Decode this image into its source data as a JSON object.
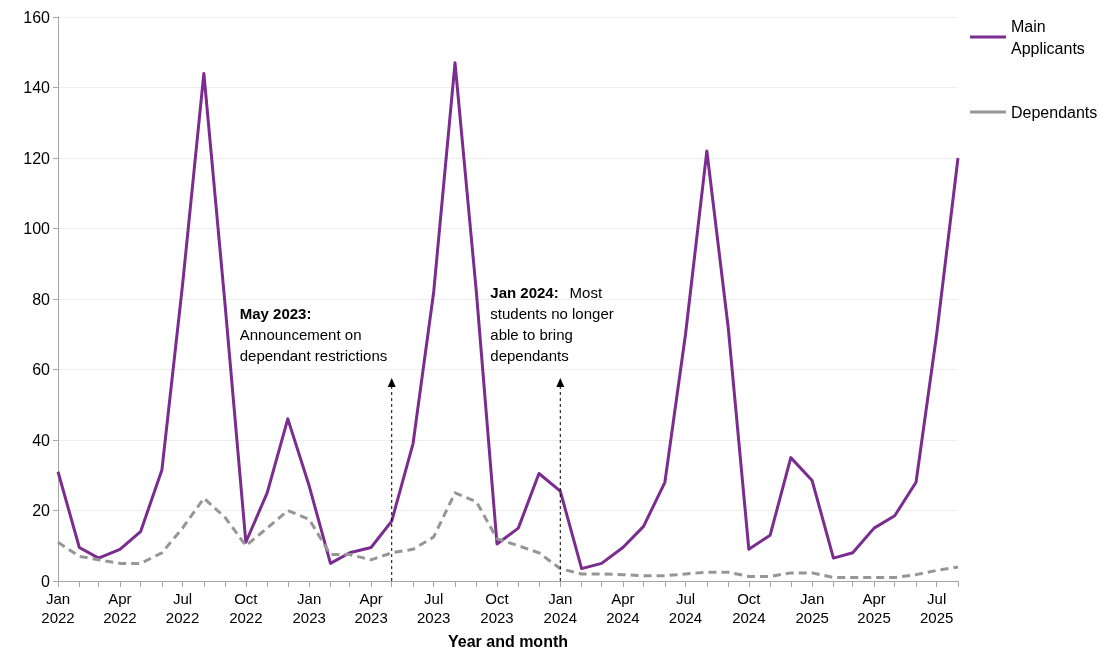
{
  "chart_data": {
    "type": "line",
    "xlabel": "Year and month",
    "x": [
      "2022-01",
      "2022-02",
      "2022-03",
      "2022-04",
      "2022-05",
      "2022-06",
      "2022-07",
      "2022-08",
      "2022-09",
      "2022-10",
      "2022-11",
      "2022-12",
      "2023-01",
      "2023-02",
      "2023-03",
      "2023-04",
      "2023-05",
      "2023-06",
      "2023-07",
      "2023-08",
      "2023-09",
      "2023-10",
      "2023-11",
      "2023-12",
      "2024-01",
      "2024-02",
      "2024-03",
      "2024-04",
      "2024-05",
      "2024-06",
      "2024-07",
      "2024-08",
      "2024-09",
      "2024-10",
      "2024-11",
      "2024-12",
      "2025-01",
      "2025-02",
      "2025-03",
      "2025-04",
      "2025-05",
      "2025-06",
      "2025-07",
      "2025-08"
    ],
    "series": [
      {
        "name": "Main Applicants",
        "color": "#7b2c8f",
        "line_style": "solid",
        "values": [
          31,
          9.5,
          6.5,
          9,
          14,
          31.5,
          84,
          144,
          78,
          11,
          25,
          46,
          27,
          5,
          8,
          9.5,
          17,
          39,
          82,
          147,
          82,
          10.5,
          15,
          30.5,
          25.5,
          3.5,
          5,
          9.5,
          15.5,
          28,
          70,
          122,
          72,
          9,
          13,
          35,
          28.5,
          6.5,
          8,
          15,
          18.5,
          28,
          70,
          120
        ]
      },
      {
        "name": "Dependants",
        "color": "#969696",
        "line_style": "dashed",
        "values": [
          11,
          7,
          6,
          5,
          5,
          8,
          15,
          23.5,
          18,
          10,
          15,
          20,
          17.5,
          7.5,
          7.5,
          6,
          8,
          9,
          12.5,
          25,
          22.5,
          12,
          10,
          8,
          3.5,
          2,
          2,
          1.8,
          1.5,
          1.5,
          2,
          2.5,
          2.5,
          1.3,
          1.3,
          2.3,
          2.3,
          1,
          1,
          1,
          1,
          1.8,
          3,
          4
        ]
      }
    ],
    "xlim": [
      "2022-01",
      "2025-08"
    ],
    "xticks": [
      {
        "value": "2022-01",
        "label": "Jan 2022"
      },
      {
        "value": "2022-02",
        "label": null
      },
      {
        "value": "2022-03",
        "label": null
      },
      {
        "value": "2022-04",
        "label": "Apr 2022"
      },
      {
        "value": "2022-05",
        "label": null
      },
      {
        "value": "2022-06",
        "label": null
      },
      {
        "value": "2022-07",
        "label": "Jul 2022"
      },
      {
        "value": "2022-08",
        "label": null
      },
      {
        "value": "2022-09",
        "label": null
      },
      {
        "value": "2022-10",
        "label": "Oct 2022"
      },
      {
        "value": "2022-11",
        "label": null
      },
      {
        "value": "2022-12",
        "label": null
      },
      {
        "value": "2023-01",
        "label": "Jan 2023"
      },
      {
        "value": "2023-02",
        "label": null
      },
      {
        "value": "2023-03",
        "label": null
      },
      {
        "value": "2023-04",
        "label": "Apr 2023"
      },
      {
        "value": "2023-05",
        "label": null
      },
      {
        "value": "2023-06",
        "label": null
      },
      {
        "value": "2023-07",
        "label": "Jul 2023"
      },
      {
        "value": "2023-08",
        "label": null
      },
      {
        "value": "2023-09",
        "label": null
      },
      {
        "value": "2023-10",
        "label": "Oct 2023"
      },
      {
        "value": "2023-11",
        "label": null
      },
      {
        "value": "2023-12",
        "label": null
      },
      {
        "value": "2024-01",
        "label": "Jan 2024"
      },
      {
        "value": "2024-02",
        "label": null
      },
      {
        "value": "2024-03",
        "label": null
      },
      {
        "value": "2024-04",
        "label": "Apr 2024"
      },
      {
        "value": "2024-05",
        "label": null
      },
      {
        "value": "2024-06",
        "label": null
      },
      {
        "value": "2024-07",
        "label": "Jul 2024"
      },
      {
        "value": "2024-08",
        "label": null
      },
      {
        "value": "2024-09",
        "label": null
      },
      {
        "value": "2024-10",
        "label": "Oct 2024"
      },
      {
        "value": "2024-11",
        "label": null
      },
      {
        "value": "2024-12",
        "label": null
      },
      {
        "value": "2025-01",
        "label": "Jan 2025"
      },
      {
        "value": "2025-02",
        "label": null
      },
      {
        "value": "2025-03",
        "label": null
      },
      {
        "value": "2025-04",
        "label": "Apr 2025"
      },
      {
        "value": "2025-05",
        "label": null
      },
      {
        "value": "2025-06",
        "label": null
      },
      {
        "value": "2025-07",
        "label": "Jul 2025"
      },
      {
        "value": "2025-08",
        "label": null
      }
    ],
    "ylim": [
      0,
      160
    ],
    "yticks": [
      0,
      20,
      40,
      60,
      80,
      100,
      120,
      140,
      160
    ],
    "grid": "y",
    "legend": "top right",
    "marker": "none",
    "ref_lines": [
      {
        "axis": "x",
        "value": "2023-05",
        "color": "#000000",
        "line_style": "dashed"
      },
      {
        "axis": "x",
        "value": "2024-01",
        "color": "#000000",
        "line_style": "dashed"
      }
    ],
    "annotations": [
      "May 2023: Announcement on dependant restrictions",
      "Jan 2024: Most students no longer able to bring dependants"
    ]
  }
}
